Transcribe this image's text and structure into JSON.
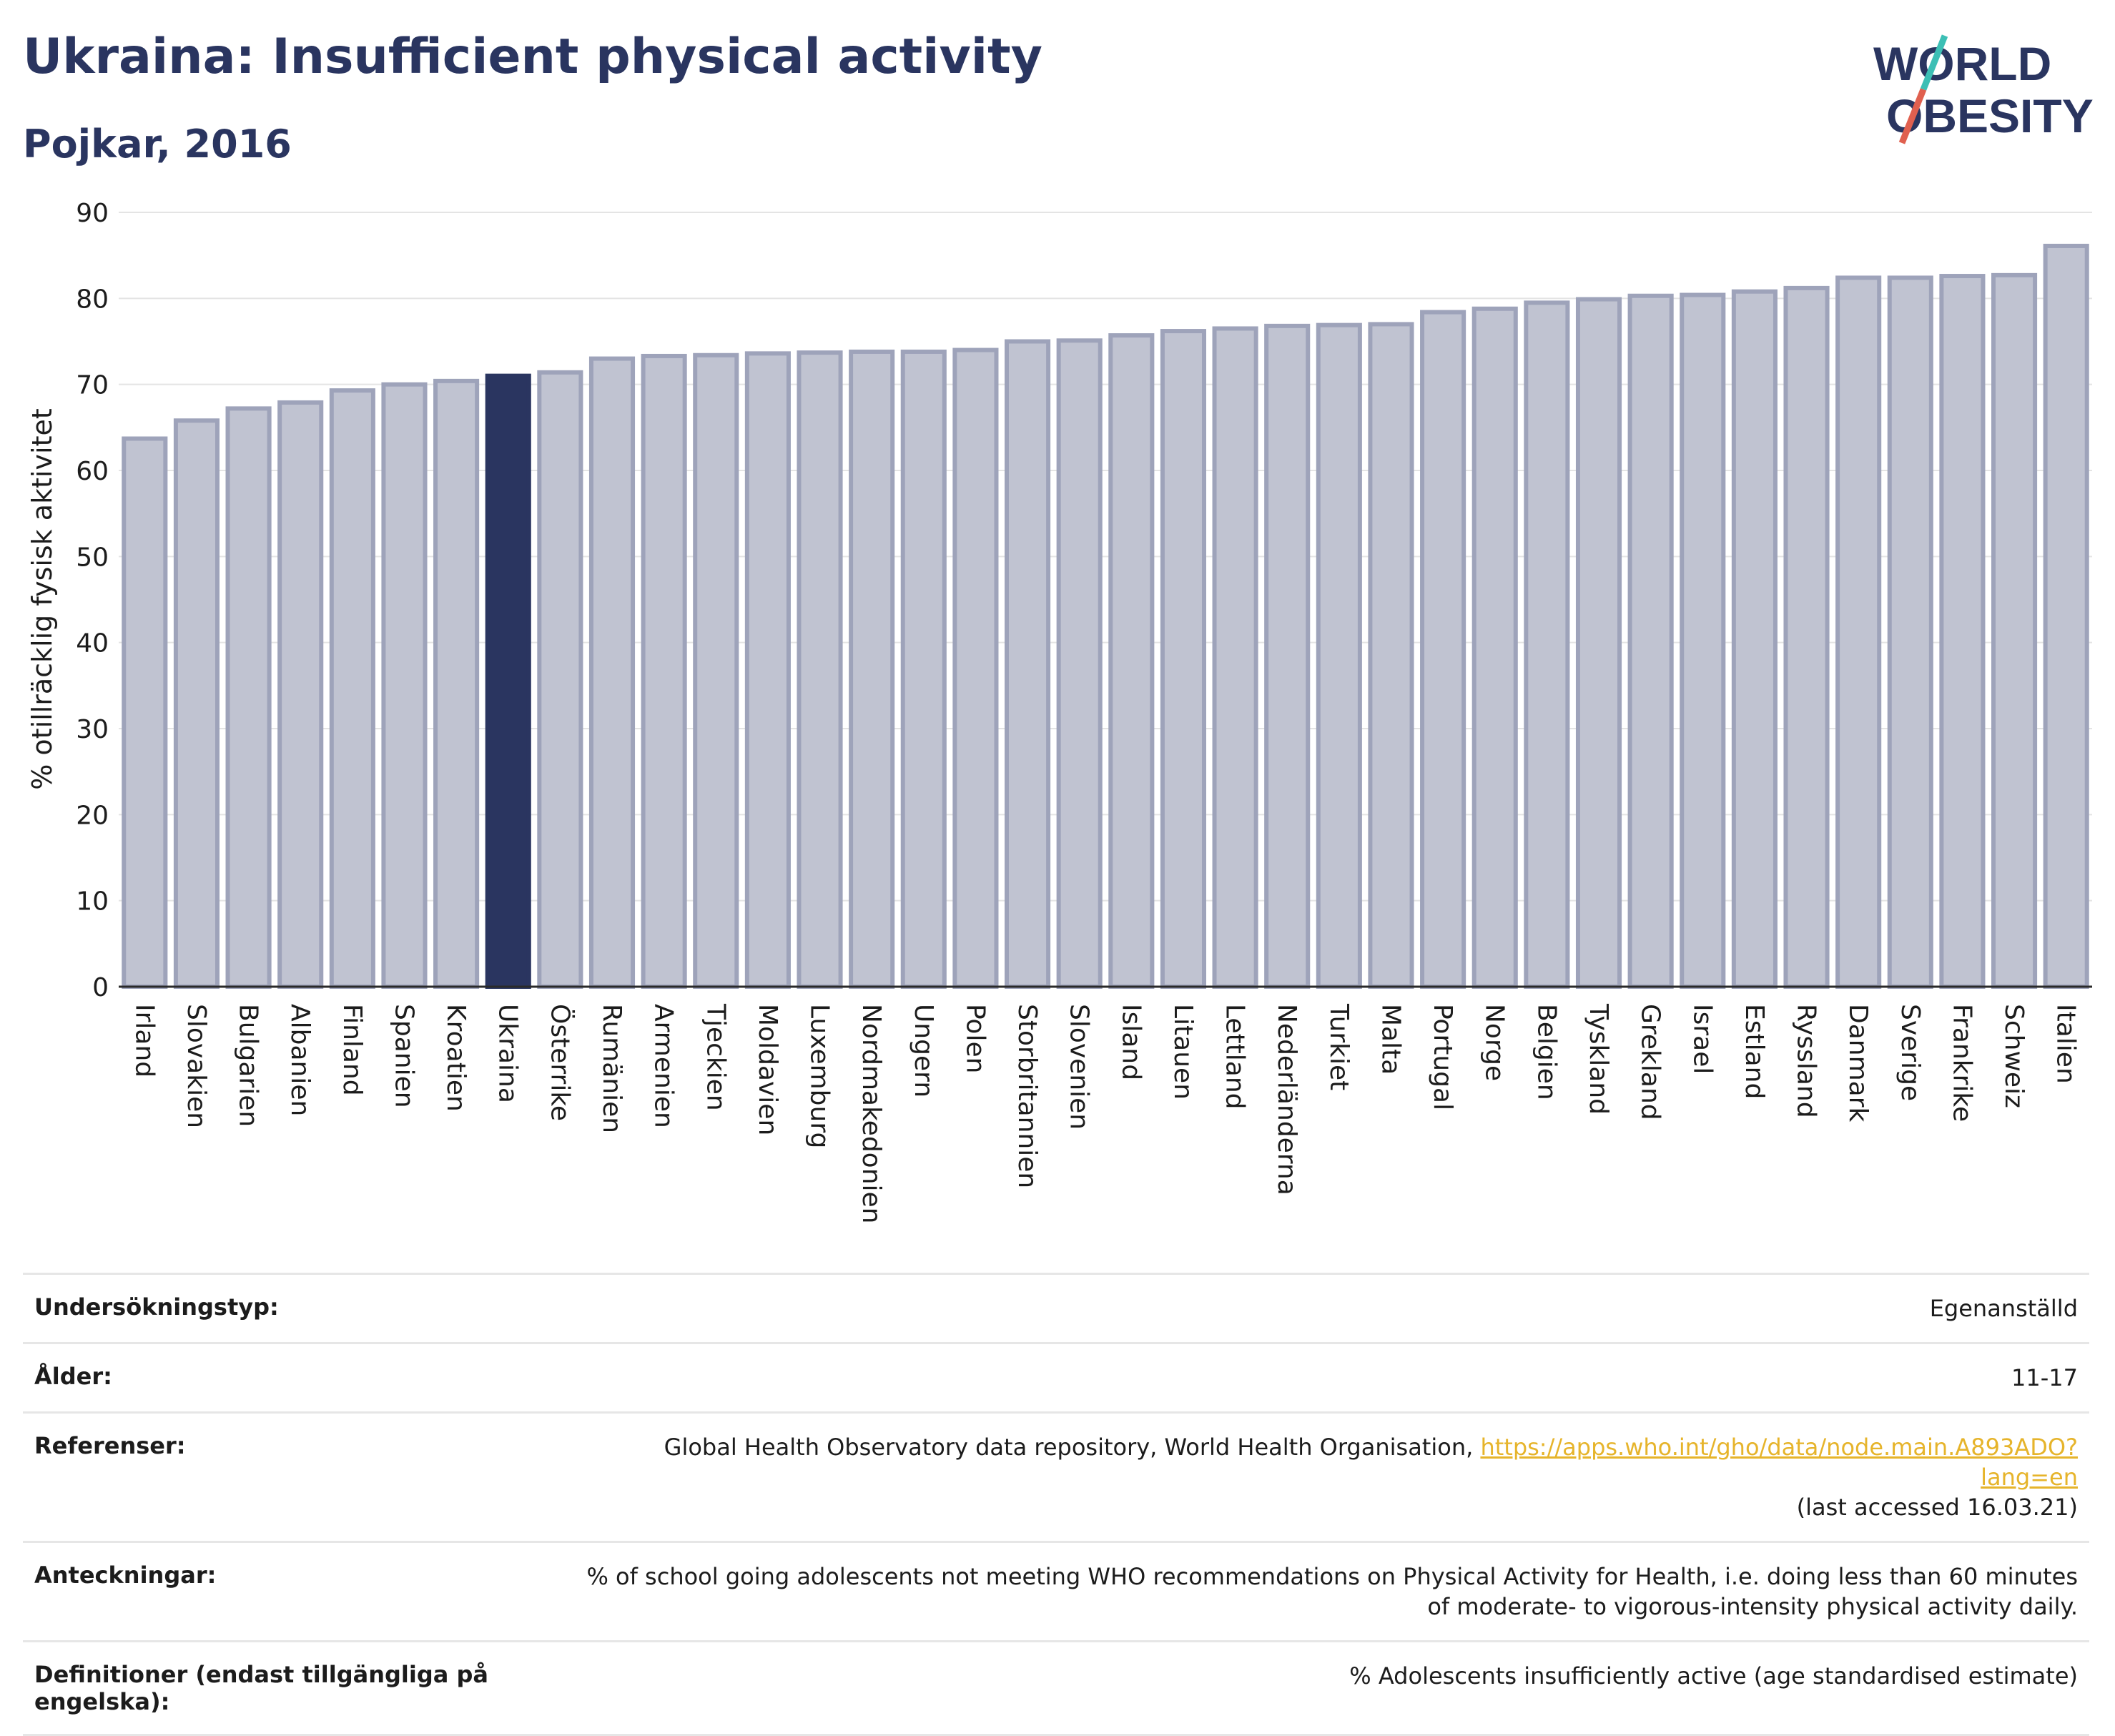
{
  "header": {
    "title": "Ukraina: Insufficient physical activity",
    "subtitle": "Pojkar, 2016"
  },
  "logo": {
    "line1": "WORLD",
    "line2": "OBESITY",
    "accent_teal": "#3cbfb5",
    "accent_red": "#e0604f"
  },
  "colors": {
    "bar": "#c0c3d1",
    "bar_border": "#9ea3ba",
    "highlight": "#2a3560",
    "grid": "#e4e4e4"
  },
  "chart_data": {
    "type": "bar",
    "title": "",
    "ylabel": "% otillräcklig fysisk aktivitet",
    "ylim": [
      0,
      90
    ],
    "yticks": [
      0,
      10,
      20,
      30,
      40,
      50,
      60,
      70,
      80,
      90
    ],
    "grid": true,
    "highlight": "Ukraina",
    "categories": [
      "Irland",
      "Slovakien",
      "Bulgarien",
      "Albanien",
      "Finland",
      "Spanien",
      "Kroatien",
      "Ukraina",
      "Österrike",
      "Rumänien",
      "Armenien",
      "Tjeckien",
      "Moldavien",
      "Luxemburg",
      "Nordmakedonien",
      "Ungern",
      "Polen",
      "Storbritannien",
      "Slovenien",
      "Island",
      "Litauen",
      "Lettland",
      "Nederländerna",
      "Turkiet",
      "Malta",
      "Portugal",
      "Norge",
      "Belgien",
      "Tyskland",
      "Grekland",
      "Israel",
      "Estland",
      "Ryssland",
      "Danmark",
      "Sverige",
      "Frankrike",
      "Schweiz",
      "Italien"
    ],
    "values": [
      63.7,
      65.8,
      67.2,
      67.9,
      69.3,
      70.0,
      70.4,
      71.0,
      71.4,
      73.0,
      73.3,
      73.4,
      73.6,
      73.7,
      73.8,
      73.8,
      74.0,
      75.0,
      75.1,
      75.7,
      76.2,
      76.5,
      76.8,
      76.9,
      77.0,
      78.4,
      78.8,
      79.5,
      79.9,
      80.3,
      80.4,
      80.8,
      81.2,
      82.4,
      82.4,
      82.6,
      82.7,
      86.1
    ]
  },
  "meta": [
    {
      "key": "Undersökningstyp:",
      "value": "Egenanställd"
    },
    {
      "key": "Ålder:",
      "value": "11-17"
    },
    {
      "key": "Referenser:",
      "value": "Global Health Observatory data repository, World Health Organisation,",
      "link": "https://apps.who.int/gho/data/node.main.A893ADO?lang=en",
      "note": "(last accessed 16.03.21)"
    },
    {
      "key": "Anteckningar:",
      "value": "% of school going adolescents not meeting WHO recommendations on Physical Activity for Health, i.e. doing less than 60 minutes of moderate- to vigorous-intensity physical activity daily."
    },
    {
      "key": "Definitioner (endast tillgängliga på engelska):",
      "value": "% Adolescents insufficiently active (age standardised estimate)"
    }
  ]
}
